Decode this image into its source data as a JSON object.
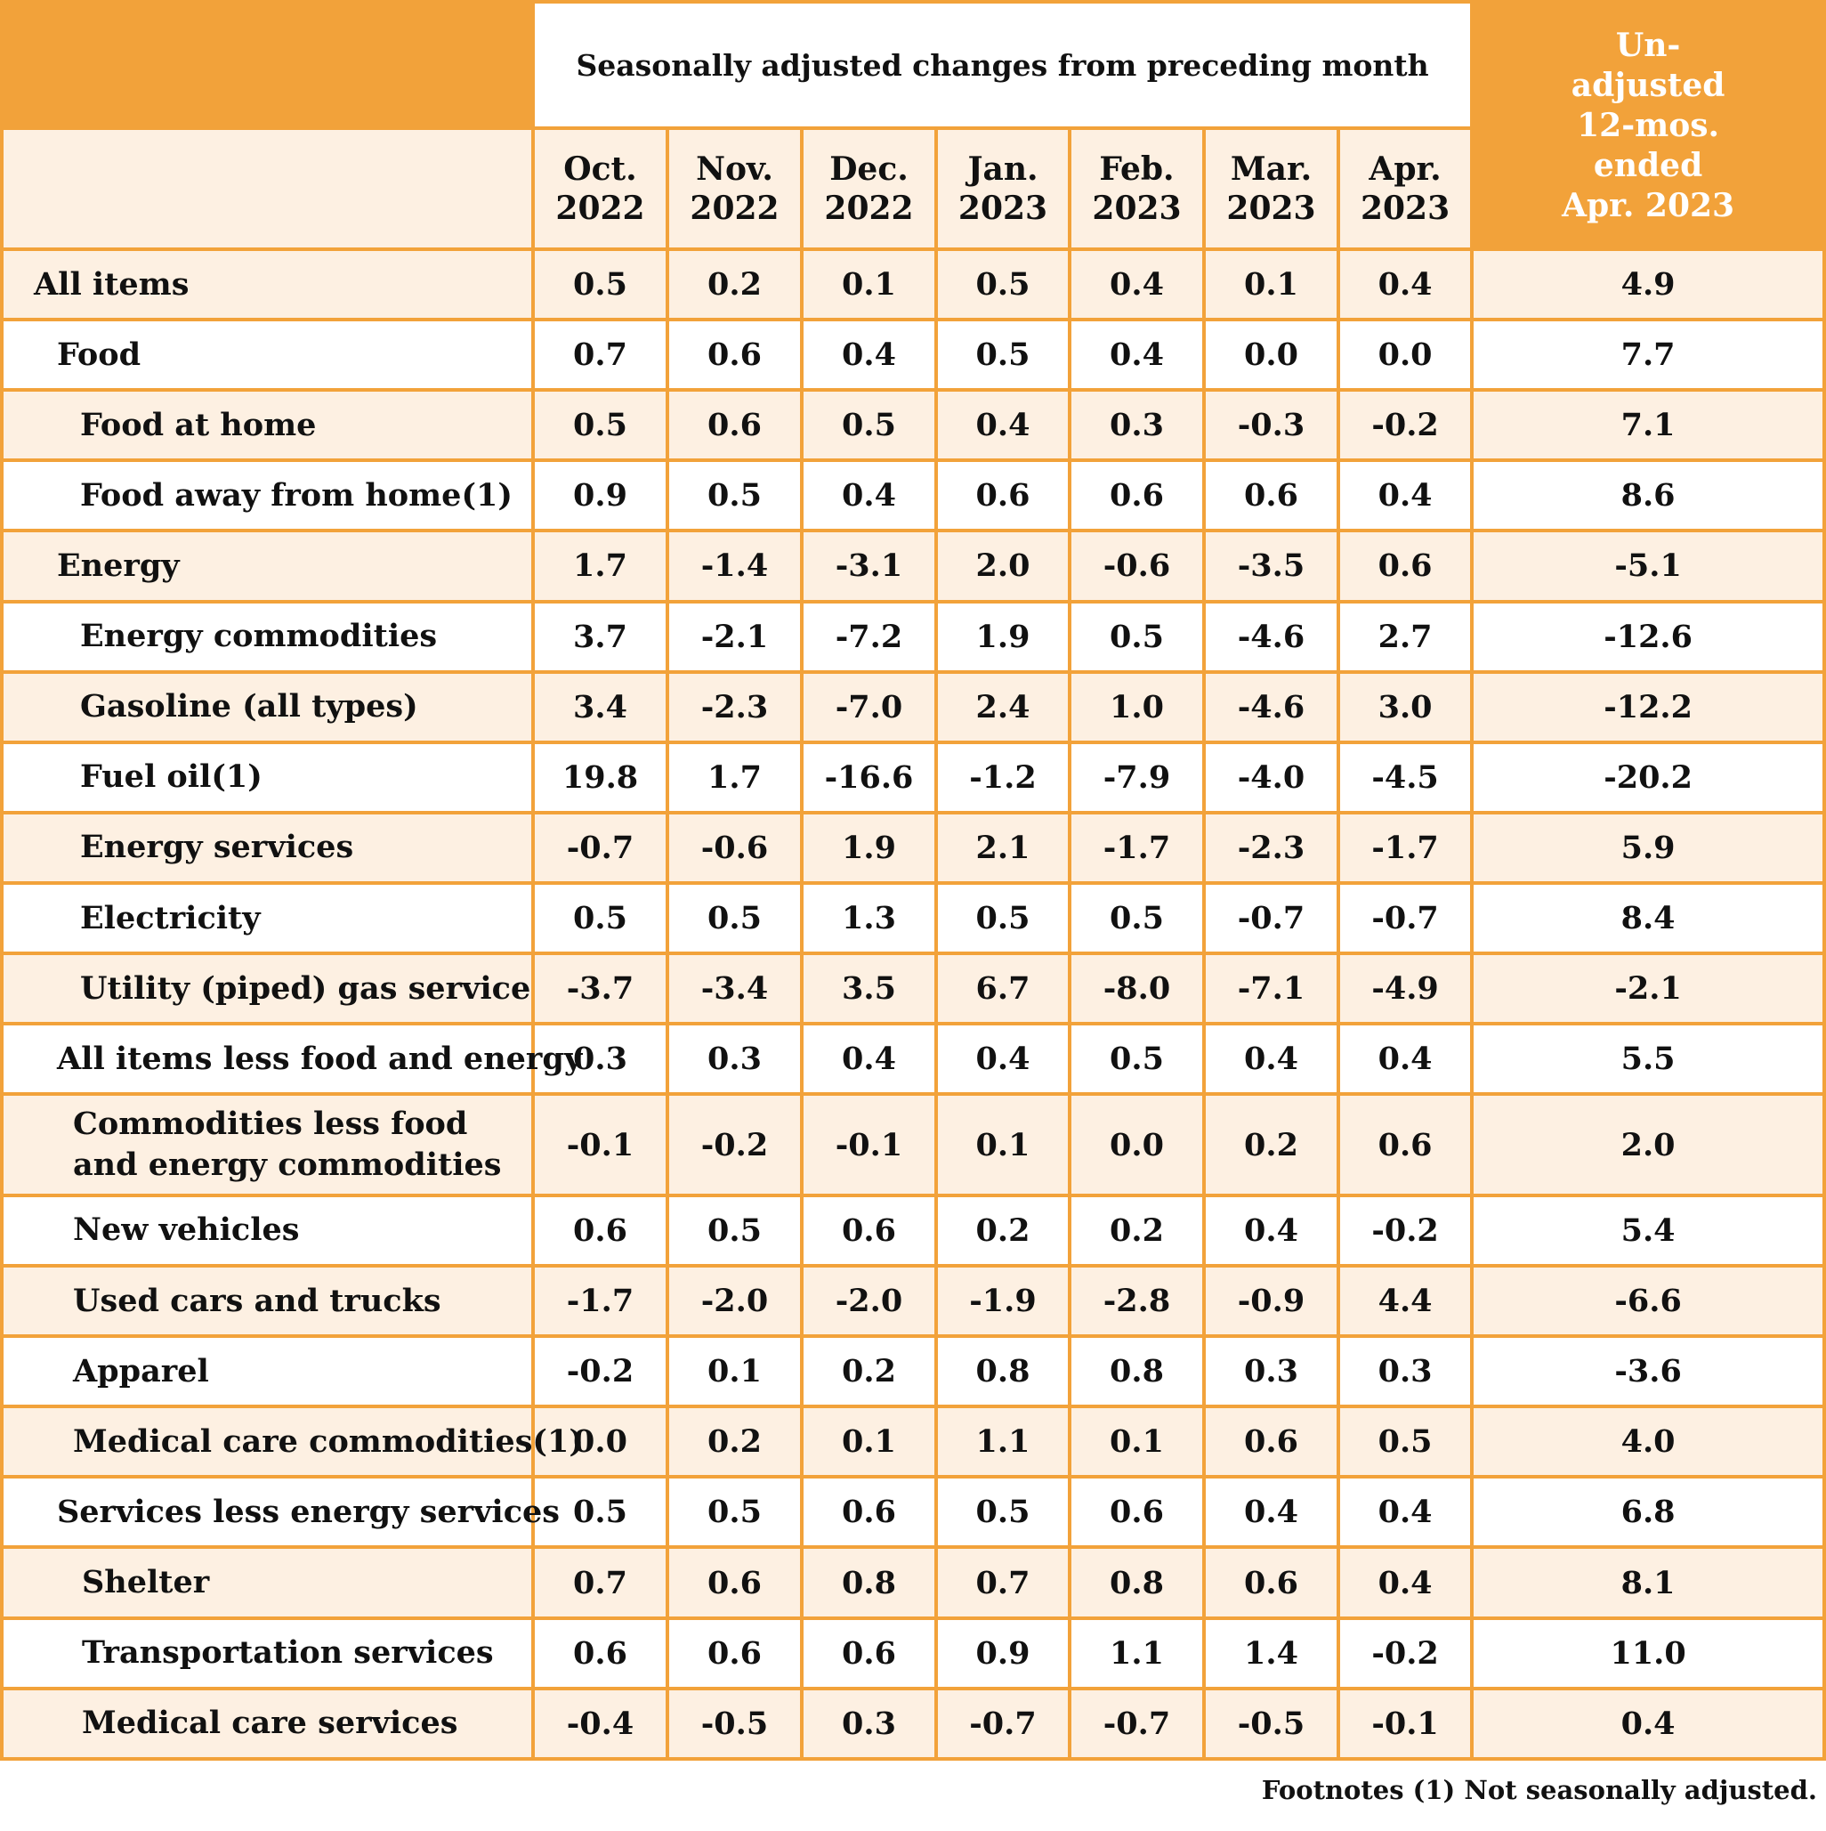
{
  "header": {
    "group_title": "Seasonally adjusted changes from preceding month",
    "unadjusted_lines": [
      "Un-",
      "adjusted",
      "12-mos.",
      "ended",
      "Apr. 2023"
    ],
    "months": [
      {
        "month": "Oct.",
        "year": "2022"
      },
      {
        "month": "Nov.",
        "year": "2022"
      },
      {
        "month": "Dec.",
        "year": "2022"
      },
      {
        "month": "Jan.",
        "year": "2023"
      },
      {
        "month": "Feb.",
        "year": "2023"
      },
      {
        "month": "Mar.",
        "year": "2023"
      },
      {
        "month": "Apr.",
        "year": "2023"
      }
    ]
  },
  "rows": [
    {
      "label": "All items",
      "values": [
        "0.5",
        "0.2",
        "0.1",
        "0.5",
        "0.4",
        "0.1",
        "0.4"
      ],
      "unadjusted": "4.9"
    },
    {
      "label": "Food",
      "values": [
        "0.7",
        "0.6",
        "0.4",
        "0.5",
        "0.4",
        "0.0",
        "0.0"
      ],
      "unadjusted": "7.7"
    },
    {
      "label": "Food at home",
      "values": [
        "0.5",
        "0.6",
        "0.5",
        "0.4",
        "0.3",
        "-0.3",
        "-0.2"
      ],
      "unadjusted": "7.1"
    },
    {
      "label": "Food away from home(1)",
      "values": [
        "0.9",
        "0.5",
        "0.4",
        "0.6",
        "0.6",
        "0.6",
        "0.4"
      ],
      "unadjusted": "8.6"
    },
    {
      "label": "Energy",
      "values": [
        "1.7",
        "-1.4",
        "-3.1",
        "2.0",
        "-0.6",
        "-3.5",
        "0.6"
      ],
      "unadjusted": "-5.1"
    },
    {
      "label": "Energy commodities",
      "values": [
        "3.7",
        "-2.1",
        "-7.2",
        "1.9",
        "0.5",
        "-4.6",
        "2.7"
      ],
      "unadjusted": "-12.6"
    },
    {
      "label": "Gasoline (all types)",
      "values": [
        "3.4",
        "-2.3",
        "-7.0",
        "2.4",
        "1.0",
        "-4.6",
        "3.0"
      ],
      "unadjusted": "-12.2"
    },
    {
      "label": "Fuel oil(1)",
      "values": [
        "19.8",
        "1.7",
        "-16.6",
        "-1.2",
        "-7.9",
        "-4.0",
        "-4.5"
      ],
      "unadjusted": "-20.2"
    },
    {
      "label": "Energy services",
      "values": [
        "-0.7",
        "-0.6",
        "1.9",
        "2.1",
        "-1.7",
        "-2.3",
        "-1.7"
      ],
      "unadjusted": "5.9"
    },
    {
      "label": "Electricity",
      "values": [
        "0.5",
        "0.5",
        "1.3",
        "0.5",
        "0.5",
        "-0.7",
        "-0.7"
      ],
      "unadjusted": "8.4"
    },
    {
      "label": "Utility (piped) gas service",
      "values": [
        "-3.7",
        "-3.4",
        "3.5",
        "6.7",
        "-8.0",
        "-7.1",
        "-4.9"
      ],
      "unadjusted": "-2.1"
    },
    {
      "label": "All items less food and energy",
      "values": [
        "0.3",
        "0.3",
        "0.4",
        "0.4",
        "0.5",
        "0.4",
        "0.4"
      ],
      "unadjusted": "5.5"
    },
    {
      "label": "Commodities less food and energy commodities",
      "values": [
        "-0.1",
        "-0.2",
        "-0.1",
        "0.1",
        "0.0",
        "0.2",
        "0.6"
      ],
      "unadjusted": "2.0"
    },
    {
      "label": "New vehicles",
      "values": [
        "0.6",
        "0.5",
        "0.6",
        "0.2",
        "0.2",
        "0.4",
        "-0.2"
      ],
      "unadjusted": "5.4"
    },
    {
      "label": "Used cars and trucks",
      "values": [
        "-1.7",
        "-2.0",
        "-2.0",
        "-1.9",
        "-2.8",
        "-0.9",
        "4.4"
      ],
      "unadjusted": "-6.6"
    },
    {
      "label": "Apparel",
      "values": [
        "-0.2",
        "0.1",
        "0.2",
        "0.8",
        "0.8",
        "0.3",
        "0.3"
      ],
      "unadjusted": "-3.6"
    },
    {
      "label": "Medical care commodities(1)",
      "values": [
        "0.0",
        "0.2",
        "0.1",
        "1.1",
        "0.1",
        "0.6",
        "0.5"
      ],
      "unadjusted": "4.0"
    },
    {
      "label": "Services less energy services",
      "values": [
        "0.5",
        "0.5",
        "0.6",
        "0.5",
        "0.6",
        "0.4",
        "0.4"
      ],
      "unadjusted": "6.8"
    },
    {
      "label": "Shelter",
      "values": [
        "0.7",
        "0.6",
        "0.8",
        "0.7",
        "0.8",
        "0.6",
        "0.4"
      ],
      "unadjusted": "8.1"
    },
    {
      "label": "Transportation services",
      "values": [
        "0.6",
        "0.6",
        "0.6",
        "0.9",
        "1.1",
        "1.4",
        "-0.2"
      ],
      "unadjusted": "11.0"
    },
    {
      "label": "Medical care services",
      "values": [
        "-0.4",
        "-0.5",
        "0.3",
        "-0.7",
        "-0.7",
        "-0.5",
        "-0.1"
      ],
      "unadjusted": "0.4"
    }
  ],
  "footnote": "Footnotes (1) Not seasonally adjusted.",
  "colors": {
    "accent": "#f2a23a",
    "row_shade": "#fdf0e2",
    "row_plain": "#ffffff"
  }
}
